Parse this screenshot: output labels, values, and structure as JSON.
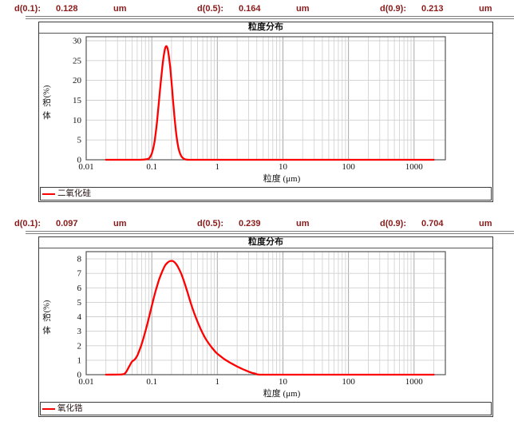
{
  "colors": {
    "accent_text": "#8b1a1a",
    "curve": "#ff0000",
    "grid_major": "#a9a9a9",
    "grid_minor": "#cfcfcf",
    "frame": "#3c3c3c"
  },
  "charts": [
    {
      "d_values": [
        {
          "label": "d(0.1):",
          "value": "0.128",
          "unit": "um"
        },
        {
          "label": "d(0.5):",
          "value": "0.164",
          "unit": "um"
        },
        {
          "label": "d(0.9):",
          "value": "0.213",
          "unit": "um"
        }
      ],
      "title": "粒度分布",
      "ylabel": "体积 (%)",
      "xlabel": "粒度 (μm)",
      "legend": "二氧化硅"
    },
    {
      "d_values": [
        {
          "label": "d(0.1):",
          "value": "0.097",
          "unit": "um"
        },
        {
          "label": "d(0.5):",
          "value": "0.239",
          "unit": "um"
        },
        {
          "label": "d(0.9):",
          "value": "0.704",
          "unit": "um"
        }
      ],
      "title": "粒度分布",
      "ylabel": "体积 (%)",
      "xlabel": "粒度 (μm)",
      "legend": "氧化锆"
    }
  ],
  "chart_data": [
    {
      "type": "line",
      "title": "粒度分布",
      "xlabel": "粒度 (μm)",
      "ylabel": "体积 (%)",
      "x_scale": "log",
      "xlim": [
        0.01,
        3000
      ],
      "ylim": [
        0,
        31
      ],
      "x_ticks": [
        0.01,
        0.1,
        1,
        10,
        100,
        1000
      ],
      "x_tick_labels": [
        "0.01",
        "0.1",
        "1",
        "10",
        "100",
        "1000"
      ],
      "y_ticks": [
        0,
        5,
        10,
        15,
        20,
        25,
        30
      ],
      "grid": true,
      "legend_position": "bottom",
      "series": [
        {
          "name": "二氧化硅",
          "color": "#ff0000",
          "x": [
            0.02,
            0.06,
            0.08,
            0.09,
            0.095,
            0.1,
            0.105,
            0.11,
            0.115,
            0.12,
            0.125,
            0.13,
            0.135,
            0.14,
            0.145,
            0.15,
            0.155,
            0.16,
            0.165,
            0.17,
            0.175,
            0.18,
            0.19,
            0.2,
            0.21,
            0.22,
            0.23,
            0.24,
            0.25,
            0.26,
            0.28,
            0.3,
            0.32,
            0.34,
            0.37,
            0.4,
            0.5,
            1,
            10,
            100,
            1000,
            2000
          ],
          "y": [
            0,
            0,
            0.1,
            0.3,
            0.8,
            1.6,
            2.8,
            4.5,
            6.8,
            9.5,
            12.5,
            15.5,
            18.4,
            21.0,
            23.4,
            25.4,
            27.0,
            28.1,
            28.6,
            28.5,
            27.9,
            26.8,
            23.6,
            19.6,
            15.4,
            11.5,
            8.2,
            5.6,
            3.7,
            2.4,
            1.0,
            0.4,
            0.15,
            0.05,
            0,
            0,
            0,
            0,
            0,
            0,
            0,
            0
          ]
        }
      ]
    },
    {
      "type": "line",
      "title": "粒度分布",
      "xlabel": "粒度 (μm)",
      "ylabel": "体积 (%)",
      "x_scale": "log",
      "xlim": [
        0.01,
        3000
      ],
      "ylim": [
        0,
        8.5
      ],
      "x_ticks": [
        0.01,
        0.1,
        1,
        10,
        100,
        1000
      ],
      "x_tick_labels": [
        "0.01",
        "0.1",
        "1",
        "10",
        "100",
        "1000"
      ],
      "y_ticks": [
        0,
        1,
        2,
        3,
        4,
        5,
        6,
        7,
        8
      ],
      "grid": true,
      "legend_position": "bottom",
      "series": [
        {
          "name": "氧化锆",
          "color": "#ff0000",
          "x": [
            0.02,
            0.035,
            0.04,
            0.045,
            0.05,
            0.055,
            0.06,
            0.065,
            0.07,
            0.08,
            0.09,
            0.1,
            0.11,
            0.12,
            0.13,
            0.145,
            0.16,
            0.175,
            0.19,
            0.21,
            0.23,
            0.25,
            0.28,
            0.31,
            0.35,
            0.39,
            0.44,
            0.5,
            0.57,
            0.65,
            0.74,
            0.85,
            0.97,
            1.1,
            1.3,
            1.5,
            1.8,
            2.1,
            2.5,
            2.9,
            3.3,
            3.8,
            4.5,
            10,
            100,
            1000,
            2000
          ],
          "y": [
            0,
            0.02,
            0.15,
            0.55,
            0.9,
            1.05,
            1.3,
            1.7,
            2.1,
            3.0,
            3.9,
            4.75,
            5.5,
            6.1,
            6.6,
            7.15,
            7.55,
            7.75,
            7.85,
            7.85,
            7.7,
            7.45,
            7.0,
            6.45,
            5.7,
            5.0,
            4.3,
            3.65,
            3.05,
            2.55,
            2.15,
            1.8,
            1.5,
            1.3,
            1.05,
            0.88,
            0.68,
            0.52,
            0.36,
            0.24,
            0.14,
            0.07,
            0,
            0,
            0,
            0,
            0
          ]
        }
      ]
    }
  ]
}
